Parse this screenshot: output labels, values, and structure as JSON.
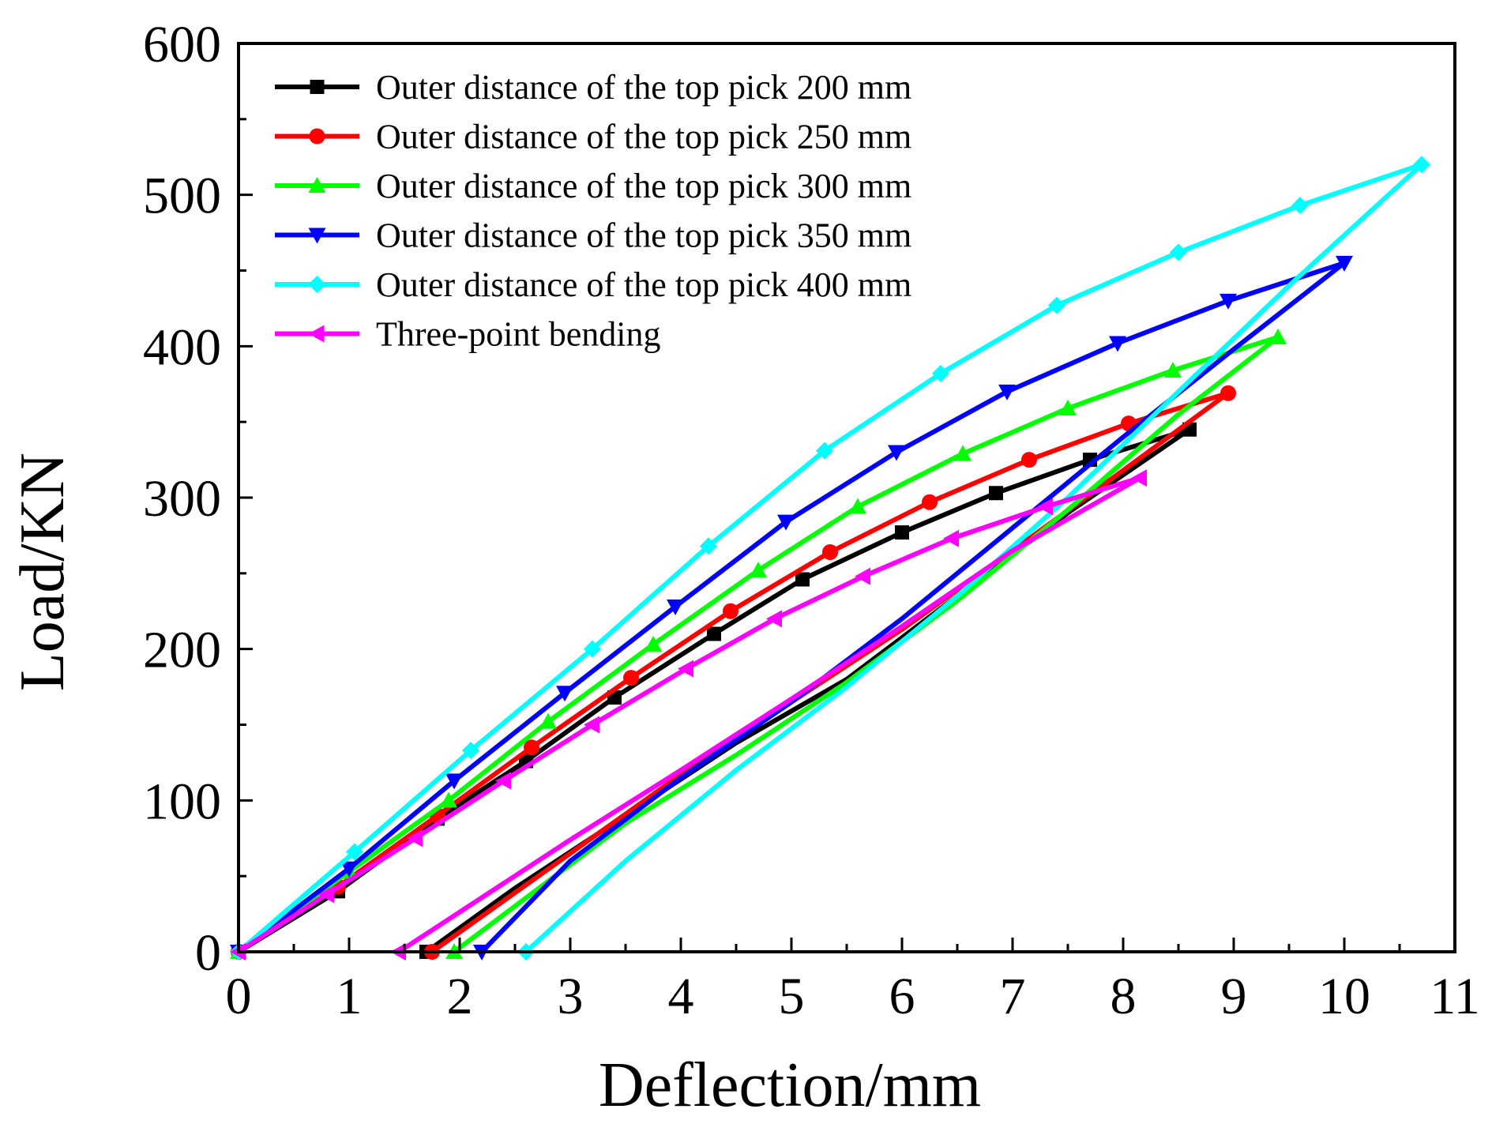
{
  "chart_data": {
    "type": "line",
    "title": "",
    "xlabel": "Deflection/mm",
    "ylabel": "Load/KN",
    "xlim": [
      0,
      11
    ],
    "ylim": [
      0,
      600
    ],
    "xticks": [
      "0",
      "1",
      "2",
      "3",
      "4",
      "5",
      "6",
      "7",
      "8",
      "9",
      "10",
      "11"
    ],
    "yticks": [
      "0",
      "100",
      "200",
      "300",
      "400",
      "500",
      "600"
    ],
    "legend_position": "top-left",
    "series": [
      {
        "name": "Outer distance of the top pick 200 mm",
        "color": "#000000",
        "marker": "square",
        "loading": {
          "x": [
            0,
            0.9,
            1.8,
            2.6,
            3.4,
            4.3,
            5.1,
            6.0,
            6.85,
            7.7,
            8.6
          ],
          "y": [
            0,
            40,
            88,
            126,
            168,
            210,
            246,
            277,
            303,
            325,
            345
          ]
        },
        "unloading": {
          "x": [
            8.6,
            7.5,
            6.5,
            5.5,
            4.5,
            3.5,
            2.5,
            1.7
          ],
          "y": [
            345,
            290,
            235,
            180,
            138,
            90,
            42,
            0
          ]
        }
      },
      {
        "name": "Outer distance of the top pick 250 mm",
        "color": "#ff0000",
        "marker": "circle",
        "loading": {
          "x": [
            0,
            0.9,
            1.8,
            2.65,
            3.55,
            4.45,
            5.35,
            6.25,
            7.15,
            8.05,
            8.95
          ],
          "y": [
            0,
            43,
            90,
            135,
            181,
            225,
            264,
            297,
            325,
            349,
            369
          ]
        },
        "unloading": {
          "x": [
            8.95,
            8.0,
            7.0,
            6.0,
            5.0,
            4.0,
            3.0,
            1.75
          ],
          "y": [
            369,
            318,
            265,
            213,
            165,
            117,
            65,
            0
          ]
        }
      },
      {
        "name": "Outer distance of the top pick 300 mm",
        "color": "#00ff00",
        "marker": "triangle-up",
        "loading": {
          "x": [
            0,
            1.0,
            1.9,
            2.8,
            3.75,
            4.7,
            5.6,
            6.55,
            7.5,
            8.45,
            9.4
          ],
          "y": [
            0,
            53,
            100,
            152,
            203,
            252,
            294,
            329,
            359,
            384,
            406
          ]
        },
        "unloading": {
          "x": [
            9.4,
            8.5,
            7.5,
            6.5,
            5.5,
            4.5,
            3.5,
            1.95
          ],
          "y": [
            406,
            355,
            292,
            232,
            178,
            130,
            85,
            0
          ]
        }
      },
      {
        "name": "Outer distance of the top pick 350 mm",
        "color": "#0000ff",
        "marker": "triangle-down",
        "loading": {
          "x": [
            0,
            1.0,
            1.95,
            2.95,
            3.95,
            4.95,
            5.95,
            6.95,
            7.95,
            8.95,
            10.0
          ],
          "y": [
            0,
            55,
            113,
            171,
            228,
            284,
            330,
            370,
            402,
            430,
            455
          ]
        },
        "unloading": {
          "x": [
            10.0,
            9.0,
            8.0,
            7.0,
            6.0,
            5.0,
            4.0,
            3.0,
            2.2
          ],
          "y": [
            455,
            398,
            340,
            280,
            220,
            165,
            115,
            60,
            0
          ]
        }
      },
      {
        "name": "Outer distance of the top pick 400 mm",
        "color": "#00ffff",
        "marker": "diamond",
        "loading": {
          "x": [
            0,
            1.05,
            2.1,
            3.2,
            4.25,
            5.3,
            6.35,
            7.4,
            8.5,
            9.6,
            10.7
          ],
          "y": [
            0,
            66,
            133,
            200,
            268,
            331,
            382,
            427,
            462,
            493,
            520
          ]
        },
        "unloading": {
          "x": [
            10.7,
            9.5,
            8.5,
            7.5,
            6.5,
            5.5,
            4.5,
            3.5,
            2.6
          ],
          "y": [
            520,
            440,
            370,
            300,
            235,
            175,
            120,
            60,
            0
          ]
        }
      },
      {
        "name": "Three-point bending",
        "color": "#ff00ff",
        "marker": "triangle-left",
        "loading": {
          "x": [
            0,
            0.8,
            1.6,
            2.4,
            3.2,
            4.05,
            4.85,
            5.65,
            6.45,
            7.3,
            8.15
          ],
          "y": [
            0,
            38,
            75,
            113,
            150,
            187,
            220,
            248,
            273,
            294,
            313
          ]
        },
        "unloading": {
          "x": [
            8.15,
            7.0,
            6.0,
            5.0,
            4.0,
            3.0,
            1.45
          ],
          "y": [
            313,
            265,
            215,
            167,
            120,
            74,
            0
          ]
        }
      }
    ]
  }
}
